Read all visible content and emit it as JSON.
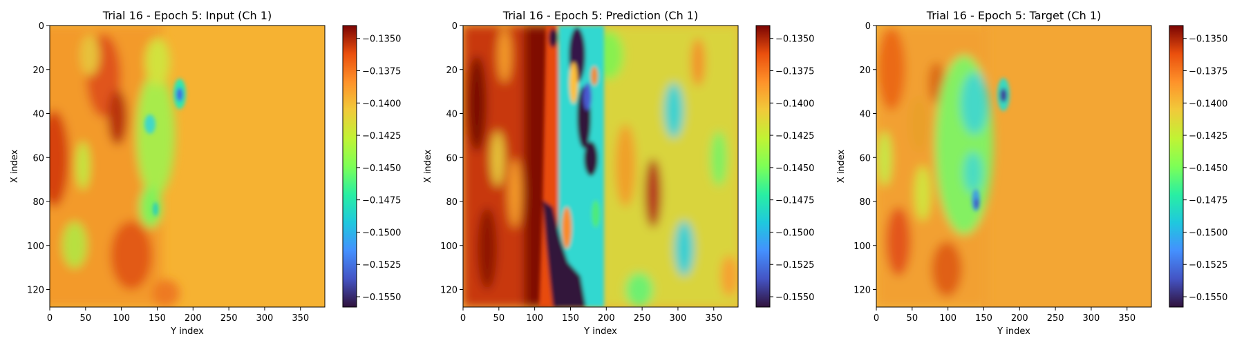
{
  "chart_data": [
    {
      "type": "heatmap",
      "title": "Trial 16 - Epoch 5: Input (Ch 1)",
      "xlabel": "Y index",
      "ylabel": "X index",
      "xlim": [
        0,
        384
      ],
      "ylim": [
        128,
        0
      ],
      "xticks": [
        "0",
        "50",
        "100",
        "150",
        "200",
        "250",
        "300",
        "350"
      ],
      "yticks": [
        "0",
        "20",
        "40",
        "60",
        "80",
        "100",
        "120"
      ],
      "colormap": "turbo",
      "colorbar": {
        "range": [
          -0.1558,
          -0.134
        ],
        "ticks": [
          "−0.1350",
          "−0.1375",
          "−0.1400",
          "−0.1425",
          "−0.1450",
          "−0.1475",
          "−0.1500",
          "−0.1525",
          "−0.1550"
        ]
      }
    },
    {
      "type": "heatmap",
      "title": "Trial 16 - Epoch 5: Prediction (Ch 1)",
      "xlabel": "Y index",
      "ylabel": "X index",
      "xlim": [
        0,
        384
      ],
      "ylim": [
        128,
        0
      ],
      "xticks": [
        "0",
        "50",
        "100",
        "150",
        "200",
        "250",
        "300",
        "350"
      ],
      "yticks": [
        "0",
        "20",
        "40",
        "60",
        "80",
        "100",
        "120"
      ],
      "colormap": "turbo",
      "colorbar": {
        "range": [
          -0.1558,
          -0.134
        ],
        "ticks": [
          "−0.1350",
          "−0.1375",
          "−0.1400",
          "−0.1425",
          "−0.1450",
          "−0.1475",
          "−0.1500",
          "−0.1525",
          "−0.1550"
        ]
      }
    },
    {
      "type": "heatmap",
      "title": "Trial 16 - Epoch 5: Target (Ch 1)",
      "xlabel": "Y index",
      "ylabel": "X index",
      "xlim": [
        0,
        384
      ],
      "ylim": [
        128,
        0
      ],
      "xticks": [
        "0",
        "50",
        "100",
        "150",
        "200",
        "250",
        "300",
        "350"
      ],
      "yticks": [
        "0",
        "20",
        "40",
        "60",
        "80",
        "100",
        "120"
      ],
      "colormap": "turbo",
      "colorbar": {
        "range": [
          -0.1558,
          -0.134
        ],
        "ticks": [
          "−0.1350",
          "−0.1375",
          "−0.1400",
          "−0.1425",
          "−0.1450",
          "−0.1475",
          "−0.1500",
          "−0.1525",
          "−0.1550"
        ]
      }
    }
  ]
}
